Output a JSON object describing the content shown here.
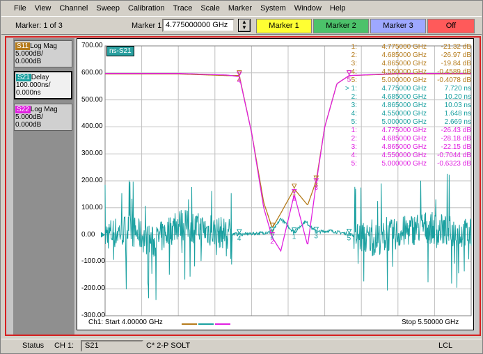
{
  "menu": [
    "File",
    "View",
    "Channel",
    "Sweep",
    "Calibration",
    "Trace",
    "Scale",
    "Marker",
    "System",
    "Window",
    "Help"
  ],
  "toolbar": {
    "marker_count": "Marker: 1 of 3",
    "marker_select_label": "Marker 1",
    "marker_value": "4.775000000 GHz",
    "buttons": [
      "Marker 1",
      "Marker 2",
      "Marker 3",
      "Off"
    ]
  },
  "colors": {
    "s11": "#b57b1b",
    "s21": "#1aa0a0",
    "s22": "#e020e0"
  },
  "traces": [
    {
      "name": "S11",
      "format": "Log Mag",
      "scale": "5.000dB/",
      "ref": "0.000dB",
      "color": "#b57b1b"
    },
    {
      "name": "S21",
      "format": "Delay",
      "scale": "100.000ns/",
      "ref": "0.000ns",
      "color": "#1aa0a0"
    },
    {
      "name": "S22",
      "format": "Log Mag",
      "scale": "5.000dB/",
      "ref": "0.000dB",
      "color": "#e020e0"
    }
  ],
  "plot": {
    "label": "ns-S21",
    "start": "Ch1: Start  4.00000 GHz",
    "stop": "Stop  5.50000 GHz"
  },
  "markers": [
    {
      "n": "1:",
      "freq": "4.775000 GHz",
      "val": "-21.32 dB",
      "color": "#b57b1b"
    },
    {
      "n": "2:",
      "freq": "4.685000 GHz",
      "val": "-26.97 dB",
      "color": "#b57b1b"
    },
    {
      "n": "3:",
      "freq": "4.865000 GHz",
      "val": "-19.84 dB",
      "color": "#b57b1b"
    },
    {
      "n": "4:",
      "freq": "4.550000 GHz",
      "val": "-0.4589 dB",
      "color": "#b57b1b"
    },
    {
      "n": "5:",
      "freq": "5.000000 GHz",
      "val": "-0.4078 dB",
      "color": "#b57b1b"
    },
    {
      "n": "> 1:",
      "freq": "4.775000 GHz",
      "val": "7.720 ns",
      "color": "#1aa0a0"
    },
    {
      "n": "2:",
      "freq": "4.685000 GHz",
      "val": "10.20 ns",
      "color": "#1aa0a0"
    },
    {
      "n": "3:",
      "freq": "4.865000 GHz",
      "val": "10.03 ns",
      "color": "#1aa0a0"
    },
    {
      "n": "4:",
      "freq": "4.550000 GHz",
      "val": "1.648 ns",
      "color": "#1aa0a0"
    },
    {
      "n": "5:",
      "freq": "5.000000 GHz",
      "val": "2.669 ns",
      "color": "#1aa0a0"
    },
    {
      "n": "1:",
      "freq": "4.775000 GHz",
      "val": "-26.43 dB",
      "color": "#e020e0"
    },
    {
      "n": "2:",
      "freq": "4.685000 GHz",
      "val": "-28.18 dB",
      "color": "#e020e0"
    },
    {
      "n": "3:",
      "freq": "4.865000 GHz",
      "val": "-22.15 dB",
      "color": "#e020e0"
    },
    {
      "n": "4:",
      "freq": "4.550000 GHz",
      "val": "-0.7044 dB",
      "color": "#e020e0"
    },
    {
      "n": "5:",
      "freq": "5.000000 GHz",
      "val": "-0.6323 dB",
      "color": "#e020e0"
    }
  ],
  "status": {
    "label": "Status",
    "channel": "CH 1:",
    "param": "S21",
    "cal": "C* 2-P SOLT",
    "mode": "LCL"
  },
  "chart_data": {
    "type": "line",
    "xlabel": "",
    "ylabel": "",
    "xlim": [
      4.0,
      5.5
    ],
    "ylim": [
      -300,
      700
    ],
    "y_ticks": [
      "700.00",
      "600.00",
      "500.00",
      "400.00",
      "300.00",
      "200.00",
      "100.00",
      "0.00",
      "-100.00",
      "-200.00",
      "-300.00"
    ],
    "grid": true,
    "series": [
      {
        "name": "S21",
        "x": [
          4.0,
          4.1,
          4.2,
          4.3,
          4.45,
          4.55,
          4.62,
          4.685,
          4.72,
          4.775,
          4.82,
          4.865,
          4.92,
          5.0,
          5.1,
          5.3,
          5.5
        ],
        "y": [
          0,
          20,
          -30,
          40,
          10,
          1.6,
          5,
          10.2,
          60,
          7.7,
          50,
          10.0,
          15,
          2.7,
          -20,
          30,
          0
        ]
      },
      {
        "name": "S11",
        "x": [
          4.0,
          4.3,
          4.5,
          4.55,
          4.6,
          4.65,
          4.685,
          4.72,
          4.775,
          4.83,
          4.865,
          4.9,
          4.95,
          5.0,
          5.2,
          5.5
        ],
        "y": [
          596,
          596,
          590,
          590,
          380,
          120,
          25,
          80,
          170,
          110,
          200,
          400,
          560,
          590,
          596,
          596
        ]
      },
      {
        "name": "S22",
        "x": [
          4.0,
          4.3,
          4.5,
          4.55,
          4.6,
          4.65,
          4.685,
          4.72,
          4.775,
          4.83,
          4.865,
          4.9,
          4.95,
          5.0,
          5.2,
          5.5
        ],
        "y": [
          598,
          598,
          592,
          586,
          380,
          100,
          -10,
          -60,
          150,
          -40,
          190,
          400,
          560,
          590,
          598,
          598
        ]
      }
    ]
  }
}
